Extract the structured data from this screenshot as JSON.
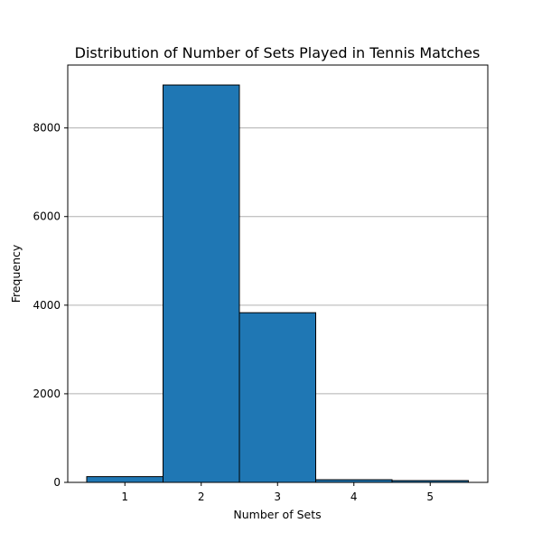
{
  "chart_data": {
    "type": "bar",
    "title": "Distribution of Number of Sets Played in Tennis Matches",
    "xlabel": "Number of Sets",
    "ylabel": "Frequency",
    "categories": [
      "1",
      "2",
      "3",
      "4",
      "5"
    ],
    "values": [
      130,
      8970,
      3830,
      60,
      40
    ],
    "ylim": [
      0,
      9420
    ],
    "yticks": [
      "0",
      "2000",
      "4000",
      "6000",
      "8000"
    ],
    "grid": "y",
    "colors": {
      "bar": "#1f77b4",
      "edge": "#000000",
      "grid": "#b0b0b0"
    }
  }
}
